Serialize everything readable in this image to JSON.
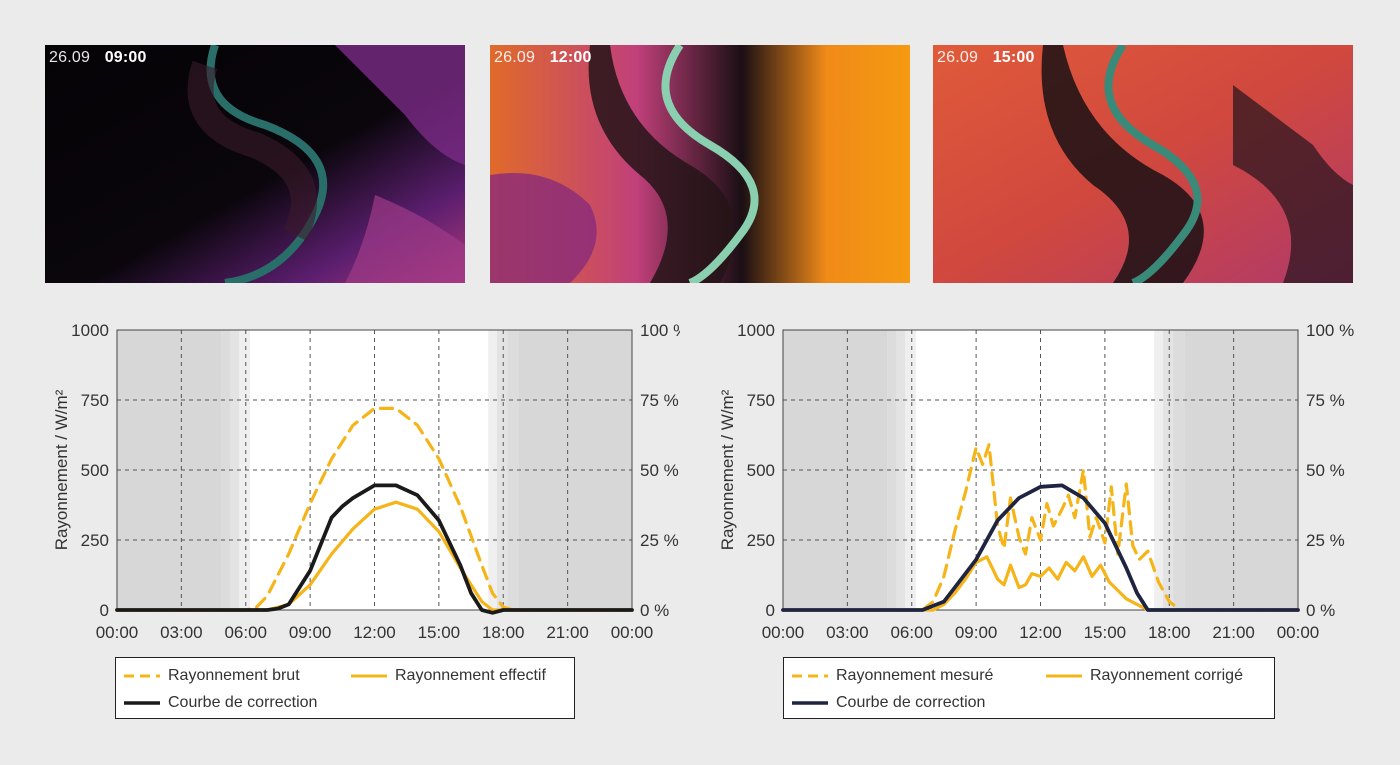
{
  "panels": [
    {
      "date": "26.09",
      "time": "09:00"
    },
    {
      "date": "26.09",
      "time": "12:00"
    },
    {
      "date": "26.09",
      "time": "15:00"
    }
  ],
  "colors": {
    "yellow": "#f5b418",
    "black": "#1a1a1a",
    "navy": "#1f2440",
    "night": "#d7d7d7",
    "twilight1": "#e3e3e3",
    "twilight2": "#efefef",
    "grid": "#555555"
  },
  "chart_data": [
    {
      "type": "line",
      "ylabel": "Rayonnement / W/m²",
      "ylim": [
        0,
        1000
      ],
      "yticks": [
        "0",
        "250",
        "500",
        "750",
        "1000"
      ],
      "y2ticks": [
        "0 %",
        "25 %",
        "50 %",
        "75 %",
        "100 %"
      ],
      "xticks": [
        "00:00",
        "03:00",
        "06:00",
        "09:00",
        "12:00",
        "15:00",
        "18:00",
        "21:00",
        "00:00"
      ],
      "night_shading": true,
      "grid": true,
      "legend": {
        "items": [
          {
            "label": "Rayonnement brut",
            "style": "dashed",
            "color": "yellow"
          },
          {
            "label": "Rayonnement effectif",
            "style": "solid",
            "color": "yellow"
          },
          {
            "label": "Courbe de correction",
            "style": "solid",
            "color": "black"
          }
        ]
      },
      "series": [
        {
          "name": "Rayonnement brut",
          "style": "dashed",
          "color": "yellow",
          "x": [
            0,
            6,
            6.5,
            7,
            8,
            9,
            10,
            11,
            12,
            13,
            14,
            15,
            16,
            17,
            17.5,
            18,
            18.5,
            24
          ],
          "y": [
            0,
            0,
            10,
            50,
            200,
            380,
            540,
            660,
            720,
            720,
            660,
            540,
            370,
            160,
            60,
            10,
            0,
            0
          ]
        },
        {
          "name": "Rayonnement effectif",
          "style": "solid",
          "color": "yellow",
          "x": [
            0,
            7,
            8,
            9,
            10,
            11,
            12,
            13,
            14,
            15,
            16,
            17,
            17.5,
            24
          ],
          "y": [
            0,
            0,
            20,
            90,
            200,
            290,
            360,
            385,
            360,
            280,
            150,
            30,
            0,
            0
          ]
        },
        {
          "name": "Courbe de correction",
          "style": "solid",
          "color": "black",
          "x": [
            0,
            7,
            7.5,
            8,
            9,
            10,
            10.5,
            11,
            12,
            13,
            14,
            15,
            16,
            16.5,
            17,
            17.5,
            18,
            24
          ],
          "y": [
            0,
            0,
            5,
            20,
            140,
            330,
            370,
            400,
            445,
            445,
            410,
            320,
            160,
            60,
            0,
            -10,
            0,
            0
          ]
        }
      ]
    },
    {
      "type": "line",
      "ylabel": "Rayonnement / W/m²",
      "ylim": [
        0,
        1000
      ],
      "yticks": [
        "0",
        "250",
        "500",
        "750",
        "1000"
      ],
      "y2ticks": [
        "0 %",
        "25 %",
        "50 %",
        "75 %",
        "100 %"
      ],
      "xticks": [
        "00:00",
        "03:00",
        "06:00",
        "09:00",
        "12:00",
        "15:00",
        "18:00",
        "21:00",
        "00:00"
      ],
      "night_shading": true,
      "grid": true,
      "legend": {
        "items": [
          {
            "label": "Rayonnement mesuré",
            "style": "dashed",
            "color": "yellow"
          },
          {
            "label": "Rayonnement corrigé",
            "style": "solid",
            "color": "yellow"
          },
          {
            "label": "Courbe de correction",
            "style": "solid",
            "color": "navy"
          }
        ]
      },
      "series": [
        {
          "name": "Rayonnement mesuré",
          "style": "dashed",
          "color": "yellow",
          "x": [
            0,
            6.5,
            7,
            7.5,
            8,
            8.5,
            9,
            9.3,
            9.6,
            10,
            10.3,
            10.6,
            11,
            11.3,
            11.6,
            12,
            12.3,
            12.6,
            13,
            13.3,
            13.6,
            14,
            14.3,
            14.6,
            15,
            15.3,
            15.6,
            16,
            16.3,
            16.6,
            17,
            17.5,
            18,
            18.5,
            24
          ],
          "y": [
            0,
            0,
            30,
            120,
            280,
            420,
            580,
            520,
            590,
            300,
            220,
            400,
            260,
            200,
            330,
            250,
            380,
            300,
            360,
            410,
            330,
            500,
            260,
            330,
            240,
            440,
            200,
            450,
            230,
            180,
            210,
            100,
            30,
            0,
            0
          ]
        },
        {
          "name": "Rayonnement corrigé",
          "style": "solid",
          "color": "yellow",
          "x": [
            0,
            7,
            7.5,
            8,
            8.5,
            9,
            9.5,
            10,
            10.3,
            10.6,
            11,
            11.3,
            11.6,
            12,
            12.4,
            12.8,
            13.2,
            13.6,
            14,
            14.4,
            14.8,
            15.2,
            15.6,
            16,
            16.5,
            17,
            24
          ],
          "y": [
            0,
            0,
            20,
            60,
            110,
            170,
            190,
            110,
            90,
            160,
            80,
            90,
            130,
            120,
            150,
            110,
            170,
            140,
            190,
            120,
            160,
            100,
            70,
            40,
            20,
            0,
            0
          ]
        },
        {
          "name": "Courbe de correction",
          "style": "solid",
          "color": "navy",
          "x": [
            0,
            6.5,
            7.5,
            8,
            9,
            10,
            11,
            12,
            13,
            14,
            15,
            16,
            16.5,
            17,
            24
          ],
          "y": [
            0,
            0,
            30,
            80,
            180,
            320,
            400,
            440,
            445,
            400,
            310,
            150,
            60,
            0,
            0
          ]
        }
      ]
    }
  ]
}
